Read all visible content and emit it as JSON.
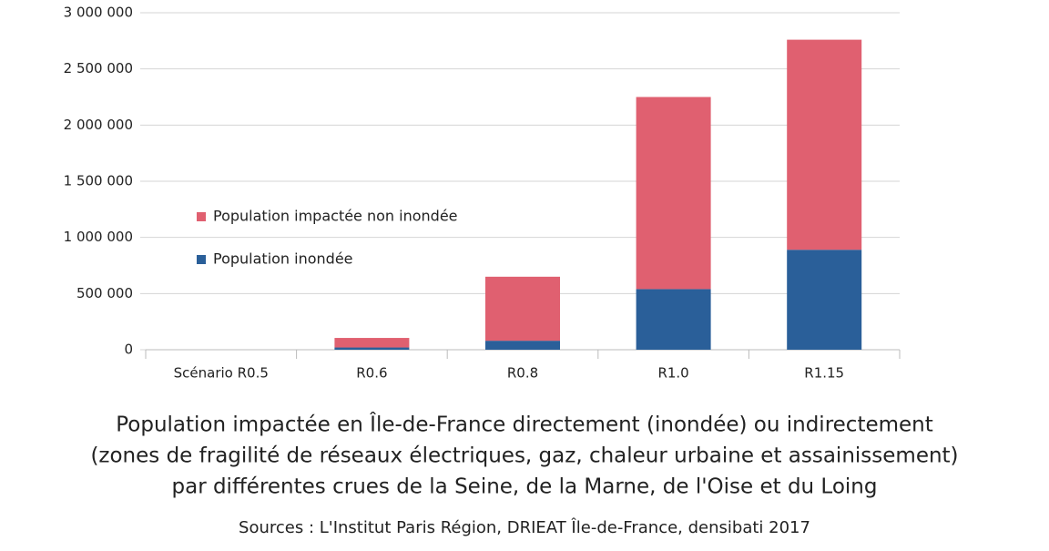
{
  "chart_data": {
    "type": "bar",
    "stacked": true,
    "title": [
      "Population impactée en Île-de-France directement (inondée) ou indirectement",
      "(zones de fragilité de réseaux électriques, gaz, chaleur urbaine et assainissement)",
      "par différentes crues de la Seine, de la Marne, de l'Oise et du Loing"
    ],
    "source": "Sources : L'Institut Paris Région, DRIEAT Île-de-France, densibati 2017",
    "categories": [
      "Scénario R0.5",
      "R0.6",
      "R0.8",
      "R1.0",
      "R1.15"
    ],
    "series": [
      {
        "name": "Population inondée",
        "color": "#2a5f99",
        "values": [
          0,
          20000,
          80000,
          540000,
          890000
        ]
      },
      {
        "name": "Population impactée non inondée",
        "color": "#e06070",
        "values": [
          0,
          85000,
          570000,
          1710000,
          1870000
        ]
      }
    ],
    "ylim": [
      0,
      3000000
    ],
    "yticks": [
      0,
      {
        "value": 500000,
        "label": "500 000"
      },
      {
        "value": 1000000,
        "label": "1 000 000"
      },
      {
        "value": 1500000,
        "label": "1 500 000"
      },
      {
        "value": 2000000,
        "label": "2 000 000"
      },
      {
        "value": 2500000,
        "label": "2 500 000"
      },
      {
        "value": 3000000,
        "label": "3 000 000"
      }
    ],
    "grid": true,
    "legend": "left"
  }
}
